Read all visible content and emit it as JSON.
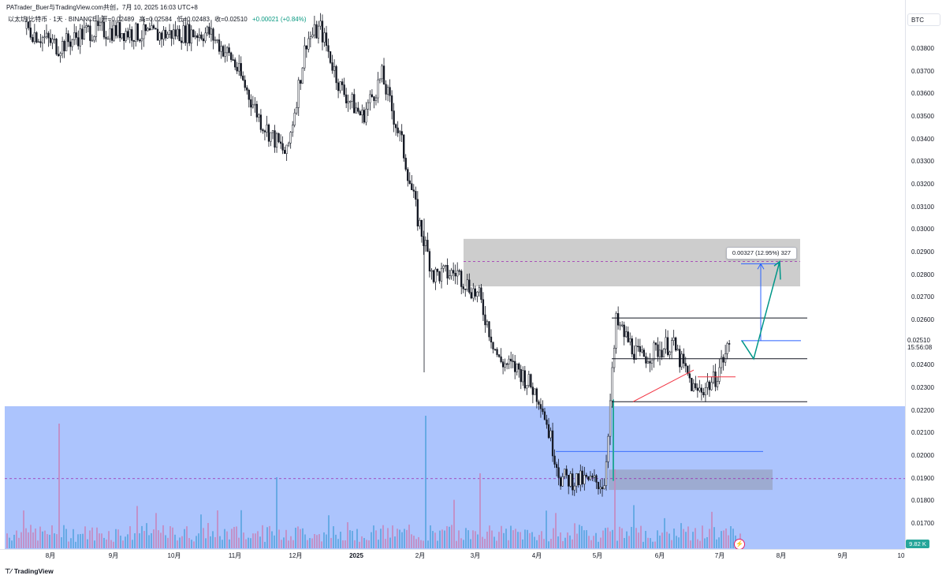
{
  "header": {
    "title": "PATrader_Buer与TradingView.com共创，7月 10, 2025 16:03 UTC+8"
  },
  "symbol": {
    "name": "以太坊/比特币 · 1天 · BINANCE",
    "open": "开=0.02489",
    "high": "高=0.02584",
    "low": "低=0.02483",
    "close": "收=0.02510",
    "change": "+0.00021 (+0.84%)"
  },
  "currency_tag": "BTC",
  "price_axis": [
    "0.03800",
    "0.03700",
    "0.03600",
    "0.03500",
    "0.03400",
    "0.03300",
    "0.03200",
    "0.03100",
    "0.03000",
    "0.02900",
    "0.02800",
    "0.02700",
    "0.02600",
    "0.02400",
    "0.02300",
    "0.02200",
    "0.02100",
    "0.02000",
    "0.01900",
    "0.01800",
    "0.01700"
  ],
  "current": {
    "price": "0.02510",
    "countdown": "15:56:08"
  },
  "volume_badge": "9.82 K",
  "time_axis": [
    "8月",
    "9月",
    "10月",
    "11月",
    "12月",
    "2025",
    "2月",
    "3月",
    "4月",
    "5月",
    "6月",
    "7月",
    "8月",
    "9月",
    "10"
  ],
  "measure_label": "0.00327 (12.95%) 327",
  "footer": {
    "logo": "TradingView"
  },
  "colors": {
    "up": "#26a69a",
    "down": "#ef5350",
    "candle": "#131722",
    "demand_zone": "#a8c1fd",
    "supply_zone": "#c8c8c8",
    "projection": "#009688",
    "measure": "#2962ff",
    "trendline": "#f23645",
    "volume_up": "#5ba6e0",
    "volume_down": "#c48ac0"
  },
  "chart_data": {
    "type": "candlestick",
    "symbol": "以太坊/比特币",
    "interval": "1天",
    "exchange": "BINANCE",
    "ylim": [
      0.0164,
      0.0397
    ],
    "x_ticks": [
      "8月",
      "9月",
      "10月",
      "11月",
      "12月",
      "2025",
      "2月",
      "3月",
      "4月",
      "5月",
      "6月",
      "7月",
      "8月",
      "9月",
      "10"
    ],
    "close_path": [
      {
        "date": "2024-07-20",
        "close": 0.0389
      },
      {
        "date": "2024-08-05",
        "close": 0.0381
      },
      {
        "date": "2024-08-20",
        "close": 0.0388
      },
      {
        "date": "2024-09-05",
        "close": 0.0388
      },
      {
        "date": "2024-09-20",
        "close": 0.0386
      },
      {
        "date": "2024-10-05",
        "close": 0.0387
      },
      {
        "date": "2024-10-20",
        "close": 0.0387
      },
      {
        "date": "2024-11-01",
        "close": 0.0375
      },
      {
        "date": "2024-11-15",
        "close": 0.0348
      },
      {
        "date": "2024-11-28",
        "close": 0.0333
      },
      {
        "date": "2024-12-08",
        "close": 0.0384
      },
      {
        "date": "2024-12-15",
        "close": 0.0389
      },
      {
        "date": "2024-12-25",
        "close": 0.0363
      },
      {
        "date": "2025-01-05",
        "close": 0.035
      },
      {
        "date": "2025-01-15",
        "close": 0.0368
      },
      {
        "date": "2025-01-25",
        "close": 0.0338
      },
      {
        "date": "2025-02-02",
        "close": 0.0305
      },
      {
        "date": "2025-02-10",
        "close": 0.028
      },
      {
        "date": "2025-02-22",
        "close": 0.0281
      },
      {
        "date": "2025-03-05",
        "close": 0.027
      },
      {
        "date": "2025-03-15",
        "close": 0.0242
      },
      {
        "date": "2025-03-25",
        "close": 0.0238
      },
      {
        "date": "2025-04-05",
        "close": 0.0225
      },
      {
        "date": "2025-04-15",
        "close": 0.019
      },
      {
        "date": "2025-04-25",
        "close": 0.0189
      },
      {
        "date": "2025-05-07",
        "close": 0.0188
      },
      {
        "date": "2025-05-10",
        "close": 0.0224
      },
      {
        "date": "2025-05-13",
        "close": 0.0259
      },
      {
        "date": "2025-05-25",
        "close": 0.0243
      },
      {
        "date": "2025-06-10",
        "close": 0.025
      },
      {
        "date": "2025-06-22",
        "close": 0.0228
      },
      {
        "date": "2025-07-01",
        "close": 0.0233
      },
      {
        "date": "2025-07-10",
        "close": 0.0251
      }
    ],
    "horizontal_levels": [
      0.0261,
      0.0243,
      0.0224
    ],
    "demand_zone": {
      "from": 0.0164,
      "to": 0.0222
    },
    "supply_zone": {
      "from": 0.0275,
      "to": 0.0296
    },
    "consolidation_zone": {
      "from": 0.0185,
      "to": 0.0194
    },
    "measure": {
      "from": 0.0251,
      "to": 0.0285,
      "label": "0.00327 (12.95%) 327"
    },
    "last_price": 0.0251
  }
}
